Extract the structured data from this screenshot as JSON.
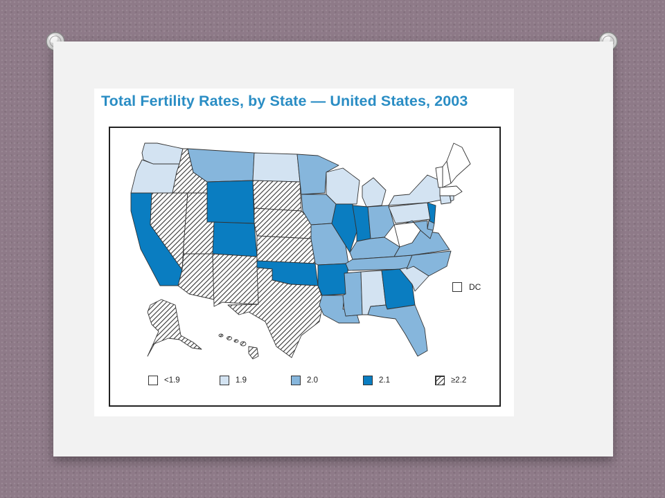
{
  "figure": {
    "title": "Total Fertility Rates, by State — United States, 2003"
  },
  "legend": {
    "items": [
      {
        "label": "<1.9",
        "category": "lt19",
        "color": "#ffffff"
      },
      {
        "label": "1.9",
        "category": "r19",
        "color": "#d3e3f2"
      },
      {
        "label": "2.0",
        "category": "r20",
        "color": "#86b6dc"
      },
      {
        "label": "2.1",
        "category": "r21",
        "color": "#0a7dc1"
      },
      {
        "label": "≥2.2",
        "category": "ge22",
        "color": "hatched"
      }
    ],
    "dc_label": "DC",
    "dc_category": "lt19"
  },
  "colors": {
    "title": "#2a8dc4",
    "lt19": "#ffffff",
    "r19": "#d3e3f2",
    "r20": "#86b6dc",
    "r21": "#0a7dc1",
    "hatch_line": "#333333",
    "background": "#8e7a88",
    "card": "#f2f2f2"
  },
  "icons": {
    "pin": "thumbtack-icon",
    "hatch": "diagonal-hatch-pattern"
  },
  "map_data": {
    "WA": "r19",
    "OR": "r19",
    "CA": "r21",
    "NV": "ge22",
    "ID": "ge22",
    "MT": "r20",
    "WY": "r21",
    "UT": "ge22",
    "AZ": "ge22",
    "CO": "r21",
    "NM": "ge22",
    "ND": "r19",
    "SD": "ge22",
    "NE": "ge22",
    "KS": "ge22",
    "OK": "r21",
    "TX": "ge22",
    "MN": "r20",
    "IA": "r20",
    "MO": "r20",
    "AR": "r21",
    "LA": "r20",
    "WI": "r19",
    "IL": "r21",
    "MI": "r19",
    "IN": "r21",
    "OH": "r20",
    "KY": "r20",
    "TN": "r20",
    "MS": "r20",
    "AL": "r19",
    "GA": "r21",
    "FL": "r20",
    "SC": "r19",
    "NC": "r20",
    "VA": "r20",
    "WV": "lt19",
    "PA": "r19",
    "NY": "r19",
    "NJ": "r21",
    "DE": "r20",
    "MD": "r20",
    "CT": "r19",
    "RI": "r19",
    "MA": "lt19",
    "VT": "lt19",
    "NH": "lt19",
    "ME": "lt19",
    "AK": "ge22",
    "HI": "ge22",
    "DC": "lt19"
  }
}
